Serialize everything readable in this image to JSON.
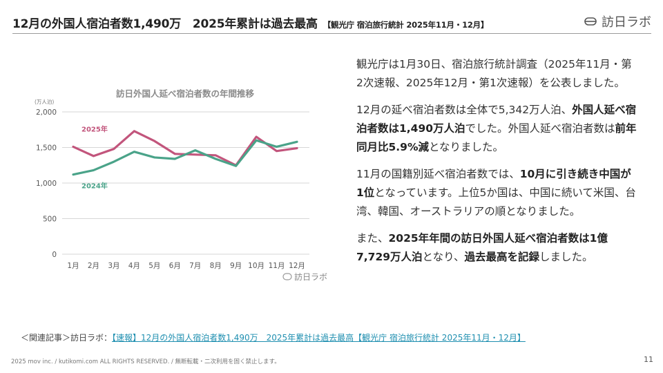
{
  "header": {
    "title": "12月の外国人宿泊者数1,490万　2025年累計は過去最高",
    "source": "【観光庁 宿泊旅行統計 2025年11月・12月】",
    "logo_text": "訪日ラボ"
  },
  "body": {
    "p1": "観光庁は1月30日、宿泊旅行統計調査（2025年11月・第2次速報、2025年12月・第1次速報）を公表しました。",
    "p2_a": "12月の延べ宿泊者数は全体で5,342万人泊、",
    "p2_b": "外国人延べ宿泊者数は1,490万人泊",
    "p2_c": "でした。外国人延べ宿泊者数は",
    "p2_d": "前年同月比5.9%減",
    "p2_e": "となりました。",
    "p3_a": "11月の国籍別延べ宿泊者数では、",
    "p3_b": "10月に引き続き中国が1位",
    "p3_c": "となっています。上位5か国は、中国に続いて米国、台湾、韓国、オーストラリアの順となりました。",
    "p4_a": "また、",
    "p4_b": "2025年年間の訪日外国人延べ宿泊者数は1億7,729万人泊",
    "p4_c": "となり、",
    "p4_d": "過去最高を記録",
    "p4_e": "しました。"
  },
  "related": {
    "prefix": "＜関連記事＞訪日ラボ：",
    "link_text": "【速報】12月の外国人宿泊者数1,490万　2025年累計は過去最高【観光庁 宿泊旅行統計 2025年11月・12月】"
  },
  "footer": {
    "copyright": "2025 mov inc. / kutikomi.com ALL RIGHTS RESERVED. / 無断転載・二次利用を固く禁止します。",
    "page": "11"
  },
  "chart_data": {
    "type": "line",
    "title": "訪日外国人延べ宿泊者数の年間推移",
    "unit_label": "(万人泊)",
    "categories": [
      "1月",
      "2月",
      "3月",
      "4月",
      "5月",
      "6月",
      "7月",
      "8月",
      "9月",
      "10月",
      "11月",
      "12月"
    ],
    "ylim": [
      0,
      2000
    ],
    "yticks": [
      0,
      500,
      1000,
      1500,
      2000
    ],
    "ytick_labels": [
      "0",
      "500",
      "1,000",
      "1,500",
      "2,000"
    ],
    "grid": true,
    "watermark": "訪日ラボ",
    "series": [
      {
        "name": "2025年",
        "color": "#c2557c",
        "values": [
          1510,
          1380,
          1480,
          1730,
          1590,
          1410,
          1400,
          1390,
          1250,
          1650,
          1450,
          1490
        ]
      },
      {
        "name": "2024年",
        "color": "#4aa389",
        "values": [
          1120,
          1180,
          1300,
          1440,
          1360,
          1340,
          1460,
          1340,
          1240,
          1600,
          1510,
          1580
        ]
      }
    ]
  }
}
